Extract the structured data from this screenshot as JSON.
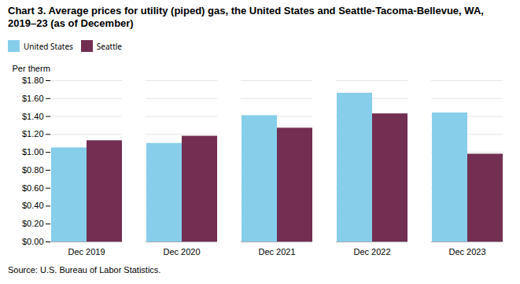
{
  "chart_data": {
    "type": "bar",
    "title": "Chart 3. Average prices for utility (piped) gas, the United States and Seattle-Tacoma-Bellevue, WA, 2019–23 (as of December)",
    "y_label": "Per therm",
    "source": "Source: U.S. Bureau of Labor Statistics.",
    "categories": [
      "Dec 2019",
      "Dec 2020",
      "Dec 2021",
      "Dec 2022",
      "Dec 2023"
    ],
    "series": [
      {
        "name": "United States",
        "color": "#87CEEB",
        "values": [
          1.05,
          1.1,
          1.41,
          1.66,
          1.44
        ]
      },
      {
        "name": "Seattle",
        "color": "#722F52",
        "values": [
          1.13,
          1.18,
          1.27,
          1.43,
          0.98
        ]
      }
    ],
    "ylim": [
      0.0,
      1.8
    ],
    "yticks": [
      {
        "value": 0.0,
        "label": "$0.00"
      },
      {
        "value": 0.2,
        "label": "$0.20"
      },
      {
        "value": 0.4,
        "label": "$0.40"
      },
      {
        "value": 0.6,
        "label": "$0.60"
      },
      {
        "value": 0.8,
        "label": "$0.80"
      },
      {
        "value": 1.0,
        "label": "$1.00"
      },
      {
        "value": 1.2,
        "label": "$1.20"
      },
      {
        "value": 1.4,
        "label": "$1.40"
      },
      {
        "value": 1.6,
        "label": "$1.60"
      },
      {
        "value": 1.8,
        "label": "$1.80"
      }
    ],
    "grid": true,
    "legend": "top"
  }
}
